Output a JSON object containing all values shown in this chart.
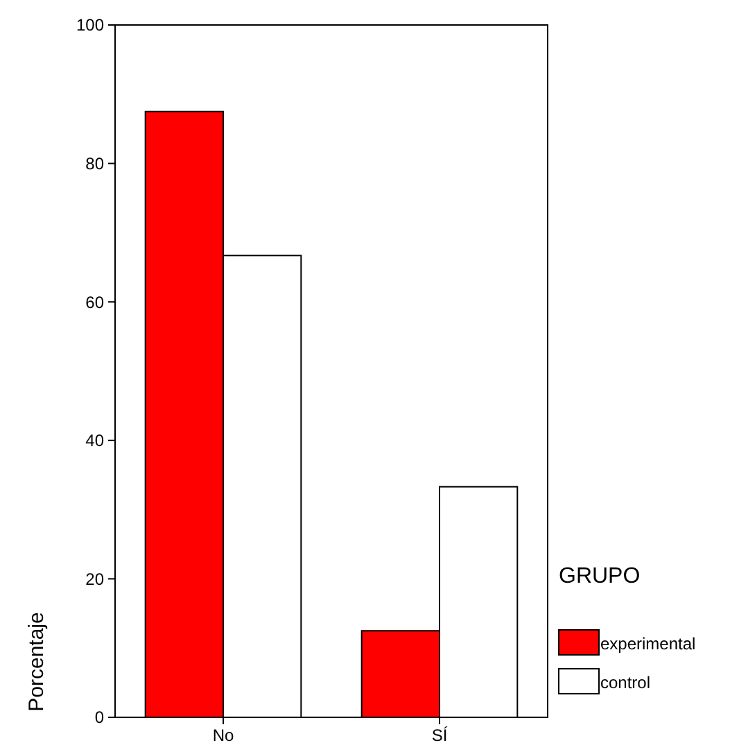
{
  "chart_data": {
    "type": "bar",
    "ylabel": "Porcentaje",
    "legend_title": "GRUPO",
    "categories": [
      "No",
      "SÍ"
    ],
    "series": [
      {
        "name": "experimental",
        "color": "#ff0000",
        "values": [
          87.5,
          12.5
        ]
      },
      {
        "name": "control",
        "color": "#ffffff",
        "values": [
          66.7,
          33.3
        ]
      }
    ],
    "ylim": [
      0,
      100
    ],
    "yticks": [
      0,
      20,
      40,
      60,
      80,
      100
    ],
    "legend": "right",
    "grid": false
  }
}
